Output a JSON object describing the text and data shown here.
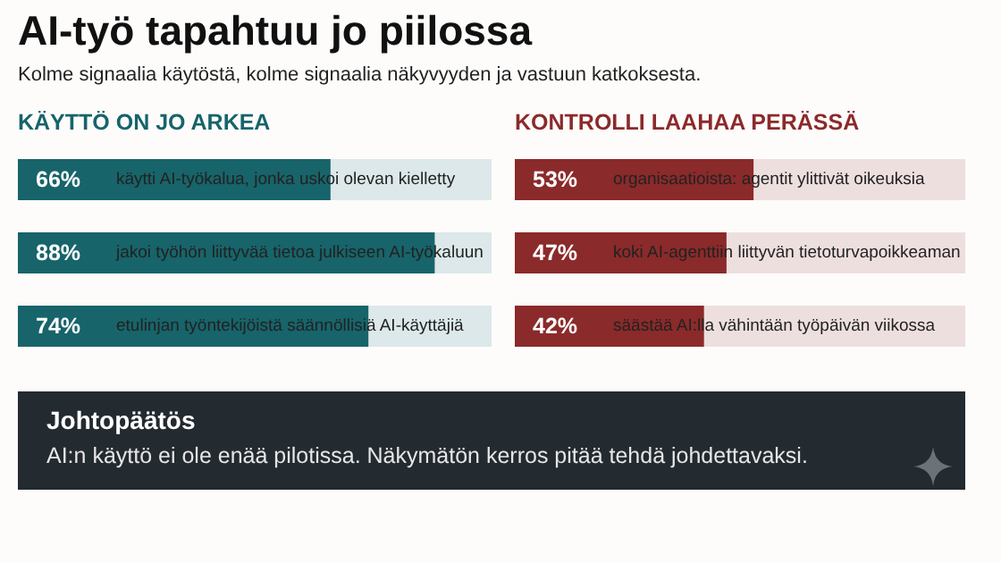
{
  "chart_data": [
    {
      "type": "other",
      "title": "AI-työ tapahtuu jo piilossa",
      "subtitle": "Kolme signaalia käytöstä, kolme signaalia näkyvyyden ja vastuun katkoksesta."
    },
    {
      "type": "bar",
      "orientation": "horizontal",
      "title": "KÄYTTÖ ON JO ARKEA",
      "categories": [
        "käytti AI-työkalua, jonka uskoi olevan kielletty",
        "jakoi työhön liittyvää tietoa julkiseen AI-työkaluun",
        "etulinjan työntekijöistä säännöllisiä AI-käyttäjiä"
      ],
      "values": [
        66,
        88,
        74
      ],
      "value_labels": [
        "66%",
        "88%",
        "74%"
      ],
      "color": "#17646a",
      "xlim": [
        0,
        100
      ],
      "tick_labels": false
    },
    {
      "type": "bar",
      "orientation": "horizontal",
      "title": "KONTROLLI LAAHAA PERÄSSÄ",
      "categories": [
        "organisaatioista: agentit ylittivät oikeuksia",
        "koki AI-agenttiin liittyvän tietoturvapoikkeaman",
        "säästää AI:lla vähintään työpäivän viikossa"
      ],
      "values": [
        53,
        47,
        42
      ],
      "value_labels": [
        "53%",
        "47%",
        "42%"
      ],
      "color": "#8b2a2a",
      "xlim": [
        0,
        100
      ],
      "tick_labels": false
    },
    {
      "type": "other",
      "title": "Johtopäätös",
      "annotations": [
        "AI:n käyttö ei ole enää pilotissa. Näkymätön kerros pitää tehdä johdettavaksi."
      ]
    }
  ]
}
